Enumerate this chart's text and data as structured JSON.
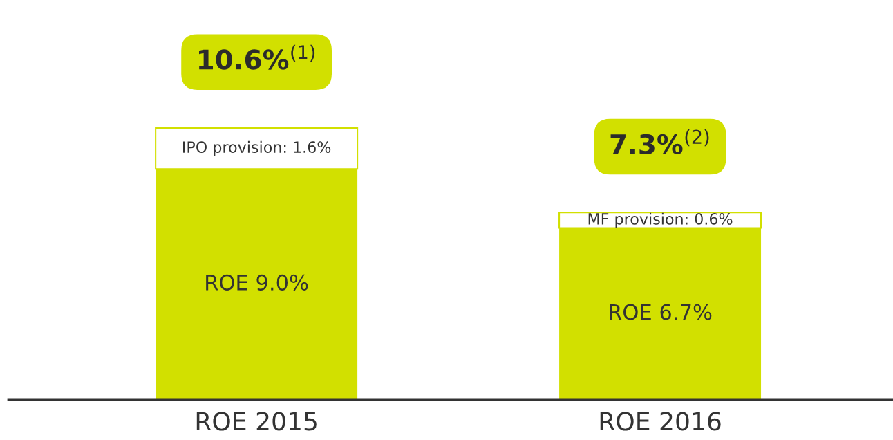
{
  "chart_data": {
    "type": "bar",
    "stacked": true,
    "categories": [
      "ROE 2015",
      "ROE 2016"
    ],
    "series": [
      {
        "color": "#d2e000",
        "values": [
          9.0,
          6.7
        ],
        "value_labels": [
          "ROE 9.0%",
          "ROE 6.7%"
        ]
      },
      {
        "color": "#ffffff",
        "values": [
          1.6,
          0.6
        ],
        "value_labels": [
          "IPO provision: 1.6%",
          "MF provision: 0.6%"
        ]
      }
    ],
    "totals": [
      "10.6%$^{(1)}$",
      "7.3%$^{(2)}$"
    ],
    "tick_labels": "x",
    "grid": false,
    "legend": false
  }
}
